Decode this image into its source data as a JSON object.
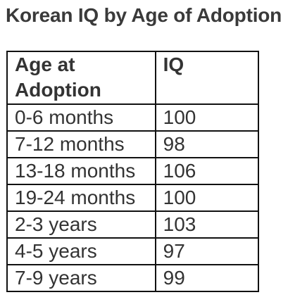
{
  "chart_data": {
    "type": "table",
    "title": "Korean IQ by Age of Adoption",
    "columns": [
      "Age at Adoption",
      "IQ"
    ],
    "rows": [
      {
        "age": "0-6 months",
        "iq": "100"
      },
      {
        "age": "7-12 months",
        "iq": "98"
      },
      {
        "age": "13-18 months",
        "iq": "106"
      },
      {
        "age": "19-24 months",
        "iq": "100"
      },
      {
        "age": "2-3 years",
        "iq": "103"
      },
      {
        "age": "4-5 years",
        "iq": "97"
      },
      {
        "age": "7-9 years",
        "iq": "99"
      }
    ],
    "header_age_line1": "Age at",
    "header_age_line2": "Adoption"
  }
}
